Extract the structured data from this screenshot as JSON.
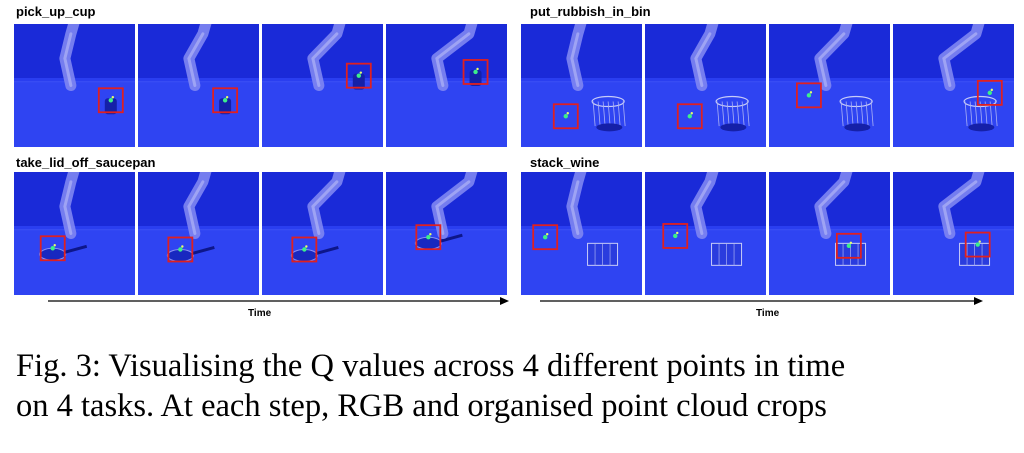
{
  "panels": [
    {
      "title": "pick_up_cup",
      "object": "cup",
      "boxes": [
        {
          "fx": 0.8,
          "fy": 0.62
        },
        {
          "fx": 0.72,
          "fy": 0.62
        },
        {
          "fx": 0.8,
          "fy": 0.42
        },
        {
          "fx": 0.74,
          "fy": 0.39
        }
      ]
    },
    {
      "title": "put_rubbish_in_bin",
      "object": "bin",
      "boxes": [
        {
          "fx": 0.37,
          "fy": 0.75
        },
        {
          "fx": 0.37,
          "fy": 0.75
        },
        {
          "fx": 0.33,
          "fy": 0.58
        },
        {
          "fx": 0.8,
          "fy": 0.56
        }
      ]
    },
    {
      "title": "take_lid_off_saucepan",
      "object": "pan",
      "boxes": [
        {
          "fx": 0.32,
          "fy": 0.62
        },
        {
          "fx": 0.35,
          "fy": 0.63
        },
        {
          "fx": 0.35,
          "fy": 0.63
        },
        {
          "fx": 0.35,
          "fy": 0.53
        }
      ]
    },
    {
      "title": "stack_wine",
      "object": "rack",
      "boxes": [
        {
          "fx": 0.2,
          "fy": 0.53
        },
        {
          "fx": 0.25,
          "fy": 0.52
        },
        {
          "fx": 0.66,
          "fy": 0.6
        },
        {
          "fx": 0.7,
          "fy": 0.59
        }
      ]
    }
  ],
  "time_label": "Time",
  "caption": {
    "line1": "Fig. 3: Visualising the Q values across 4 different points in time",
    "line2": "on 4 tasks. At each step, RGB and organised point cloud crops"
  },
  "colors": {
    "wall": "#1a2ad8",
    "table": "#2f44f2",
    "robot": "#7f86f2",
    "box": "#e02020",
    "hot": "#3cf08a"
  }
}
